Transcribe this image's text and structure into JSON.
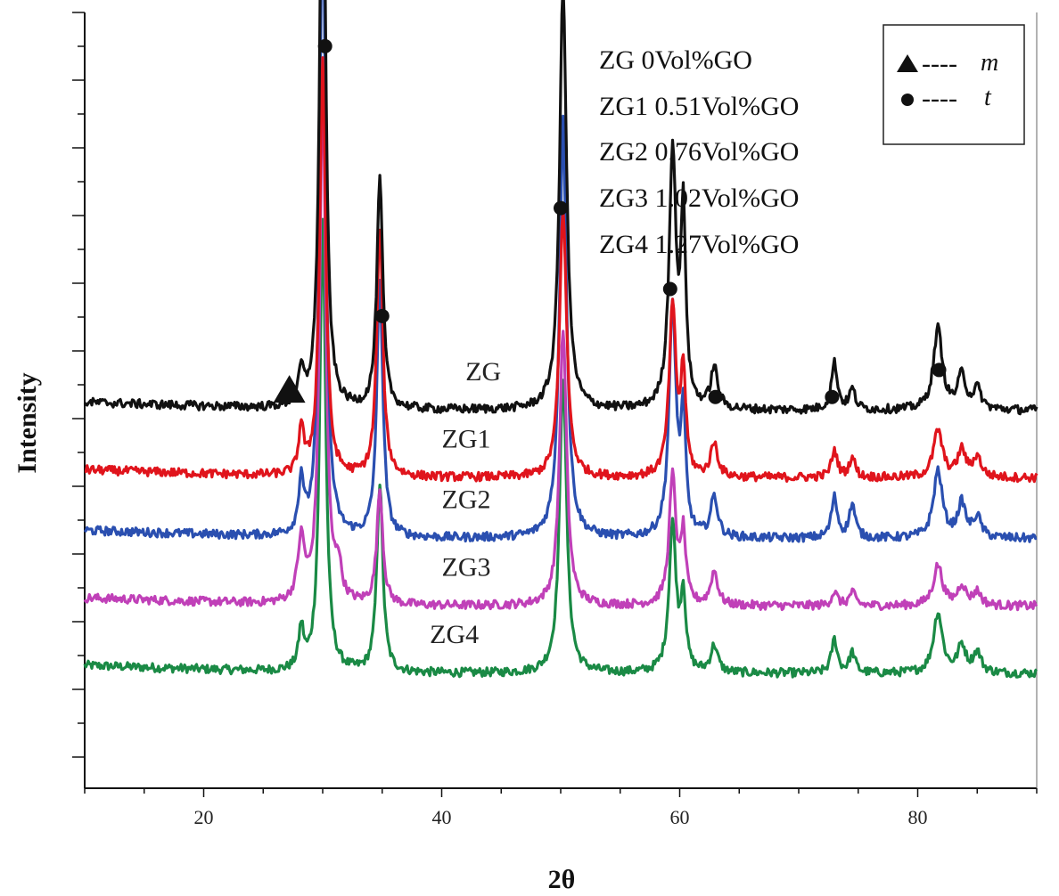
{
  "chart_data": {
    "type": "line",
    "title": "",
    "xlabel": "2θ",
    "ylabel": "Intensity",
    "xlim": [
      10,
      90
    ],
    "x_ticks": [
      20,
      40,
      60,
      80
    ],
    "y_tick_labels_shown": false,
    "grid": false,
    "stacked_offset_curves": true,
    "series": [
      {
        "name": "ZG",
        "label": "ZG",
        "color": "#111111",
        "baseline": 0.56,
        "peaks": [
          [
            28.2,
            0.05,
            0.25
          ],
          [
            30.0,
            0.97,
            0.28
          ],
          [
            34.8,
            0.34,
            0.3
          ],
          [
            50.2,
            0.63,
            0.35
          ],
          [
            59.4,
            0.38,
            0.35
          ],
          [
            60.3,
            0.28,
            0.25
          ],
          [
            62.9,
            0.06,
            0.35
          ],
          [
            73.0,
            0.07,
            0.3
          ],
          [
            74.5,
            0.03,
            0.3
          ],
          [
            81.7,
            0.12,
            0.45
          ],
          [
            83.7,
            0.05,
            0.4
          ],
          [
            85.0,
            0.03,
            0.4
          ]
        ]
      },
      {
        "name": "ZG1",
        "label": "ZG1",
        "color": "#e0141c",
        "baseline": 0.46,
        "peaks": [
          [
            28.2,
            0.07,
            0.25
          ],
          [
            30.0,
            0.62,
            0.3
          ],
          [
            34.8,
            0.37,
            0.3
          ],
          [
            50.2,
            0.4,
            0.35
          ],
          [
            59.4,
            0.25,
            0.35
          ],
          [
            60.3,
            0.15,
            0.25
          ],
          [
            62.9,
            0.05,
            0.35
          ],
          [
            73.0,
            0.04,
            0.3
          ],
          [
            74.5,
            0.03,
            0.3
          ],
          [
            81.7,
            0.07,
            0.45
          ],
          [
            83.7,
            0.04,
            0.4
          ],
          [
            85.0,
            0.03,
            0.4
          ]
        ]
      },
      {
        "name": "ZG2",
        "label": "ZG2",
        "color": "#2a4fb0",
        "baseline": 0.37,
        "peaks": [
          [
            28.2,
            0.08,
            0.25
          ],
          [
            30.0,
            1.0,
            0.28
          ],
          [
            34.8,
            0.38,
            0.3
          ],
          [
            50.2,
            0.62,
            0.35
          ],
          [
            59.4,
            0.34,
            0.35
          ],
          [
            60.3,
            0.17,
            0.25
          ],
          [
            62.9,
            0.06,
            0.35
          ],
          [
            73.0,
            0.06,
            0.3
          ],
          [
            74.5,
            0.05,
            0.3
          ],
          [
            81.7,
            0.1,
            0.45
          ],
          [
            83.7,
            0.05,
            0.4
          ],
          [
            85.0,
            0.03,
            0.4
          ]
        ]
      },
      {
        "name": "ZG3",
        "label": "ZG3",
        "color": "#c040b8",
        "baseline": 0.27,
        "peaks": [
          [
            28.2,
            0.09,
            0.35
          ],
          [
            30.0,
            0.78,
            0.3
          ],
          [
            31.3,
            0.05,
            0.3
          ],
          [
            34.8,
            0.17,
            0.3
          ],
          [
            50.2,
            0.41,
            0.35
          ],
          [
            59.4,
            0.19,
            0.35
          ],
          [
            60.3,
            0.1,
            0.25
          ],
          [
            62.9,
            0.05,
            0.35
          ],
          [
            73.0,
            0.02,
            0.3
          ],
          [
            74.5,
            0.02,
            0.3
          ],
          [
            81.7,
            0.06,
            0.45
          ],
          [
            83.7,
            0.03,
            0.4
          ],
          [
            85.0,
            0.02,
            0.4
          ]
        ]
      },
      {
        "name": "ZG4",
        "label": "ZG4",
        "color": "#1a8a45",
        "baseline": 0.17,
        "peaks": [
          [
            28.2,
            0.06,
            0.25
          ],
          [
            30.0,
            0.67,
            0.3
          ],
          [
            34.8,
            0.28,
            0.3
          ],
          [
            50.2,
            0.44,
            0.35
          ],
          [
            59.4,
            0.22,
            0.35
          ],
          [
            60.3,
            0.11,
            0.25
          ],
          [
            62.9,
            0.04,
            0.35
          ],
          [
            73.0,
            0.05,
            0.3
          ],
          [
            74.5,
            0.03,
            0.3
          ],
          [
            81.7,
            0.09,
            0.45
          ],
          [
            83.7,
            0.04,
            0.4
          ],
          [
            85.0,
            0.03,
            0.4
          ]
        ]
      }
    ],
    "phase_markers": [
      {
        "phase": "m",
        "symbol": "triangle",
        "x": 27.2,
        "y": 0.59
      },
      {
        "phase": "t",
        "symbol": "circle",
        "x": 30.2,
        "y": 1.1
      },
      {
        "phase": "t",
        "symbol": "circle",
        "x": 35.0,
        "y": 0.7
      },
      {
        "phase": "t",
        "symbol": "circle",
        "x": 50.0,
        "y": 0.86
      },
      {
        "phase": "t",
        "symbol": "circle",
        "x": 59.2,
        "y": 0.74
      },
      {
        "phase": "t",
        "symbol": "circle",
        "x": 63.0,
        "y": 0.58
      },
      {
        "phase": "t",
        "symbol": "circle",
        "x": 72.8,
        "y": 0.58
      },
      {
        "phase": "t",
        "symbol": "circle",
        "x": 81.8,
        "y": 0.62
      }
    ],
    "composition_notes": [
      "ZG 0Vol%GO",
      "ZG1 0.51Vol%GO",
      "ZG2 0.76Vol%GO",
      "ZG3 1.02Vol%GO",
      "ZG4 1.27Vol%GO"
    ],
    "legend": {
      "position": "top-right",
      "entries": [
        {
          "symbol": "triangle",
          "dash": "----",
          "label": "m"
        },
        {
          "symbol": "circle",
          "dash": "----",
          "label": "t"
        }
      ]
    }
  }
}
